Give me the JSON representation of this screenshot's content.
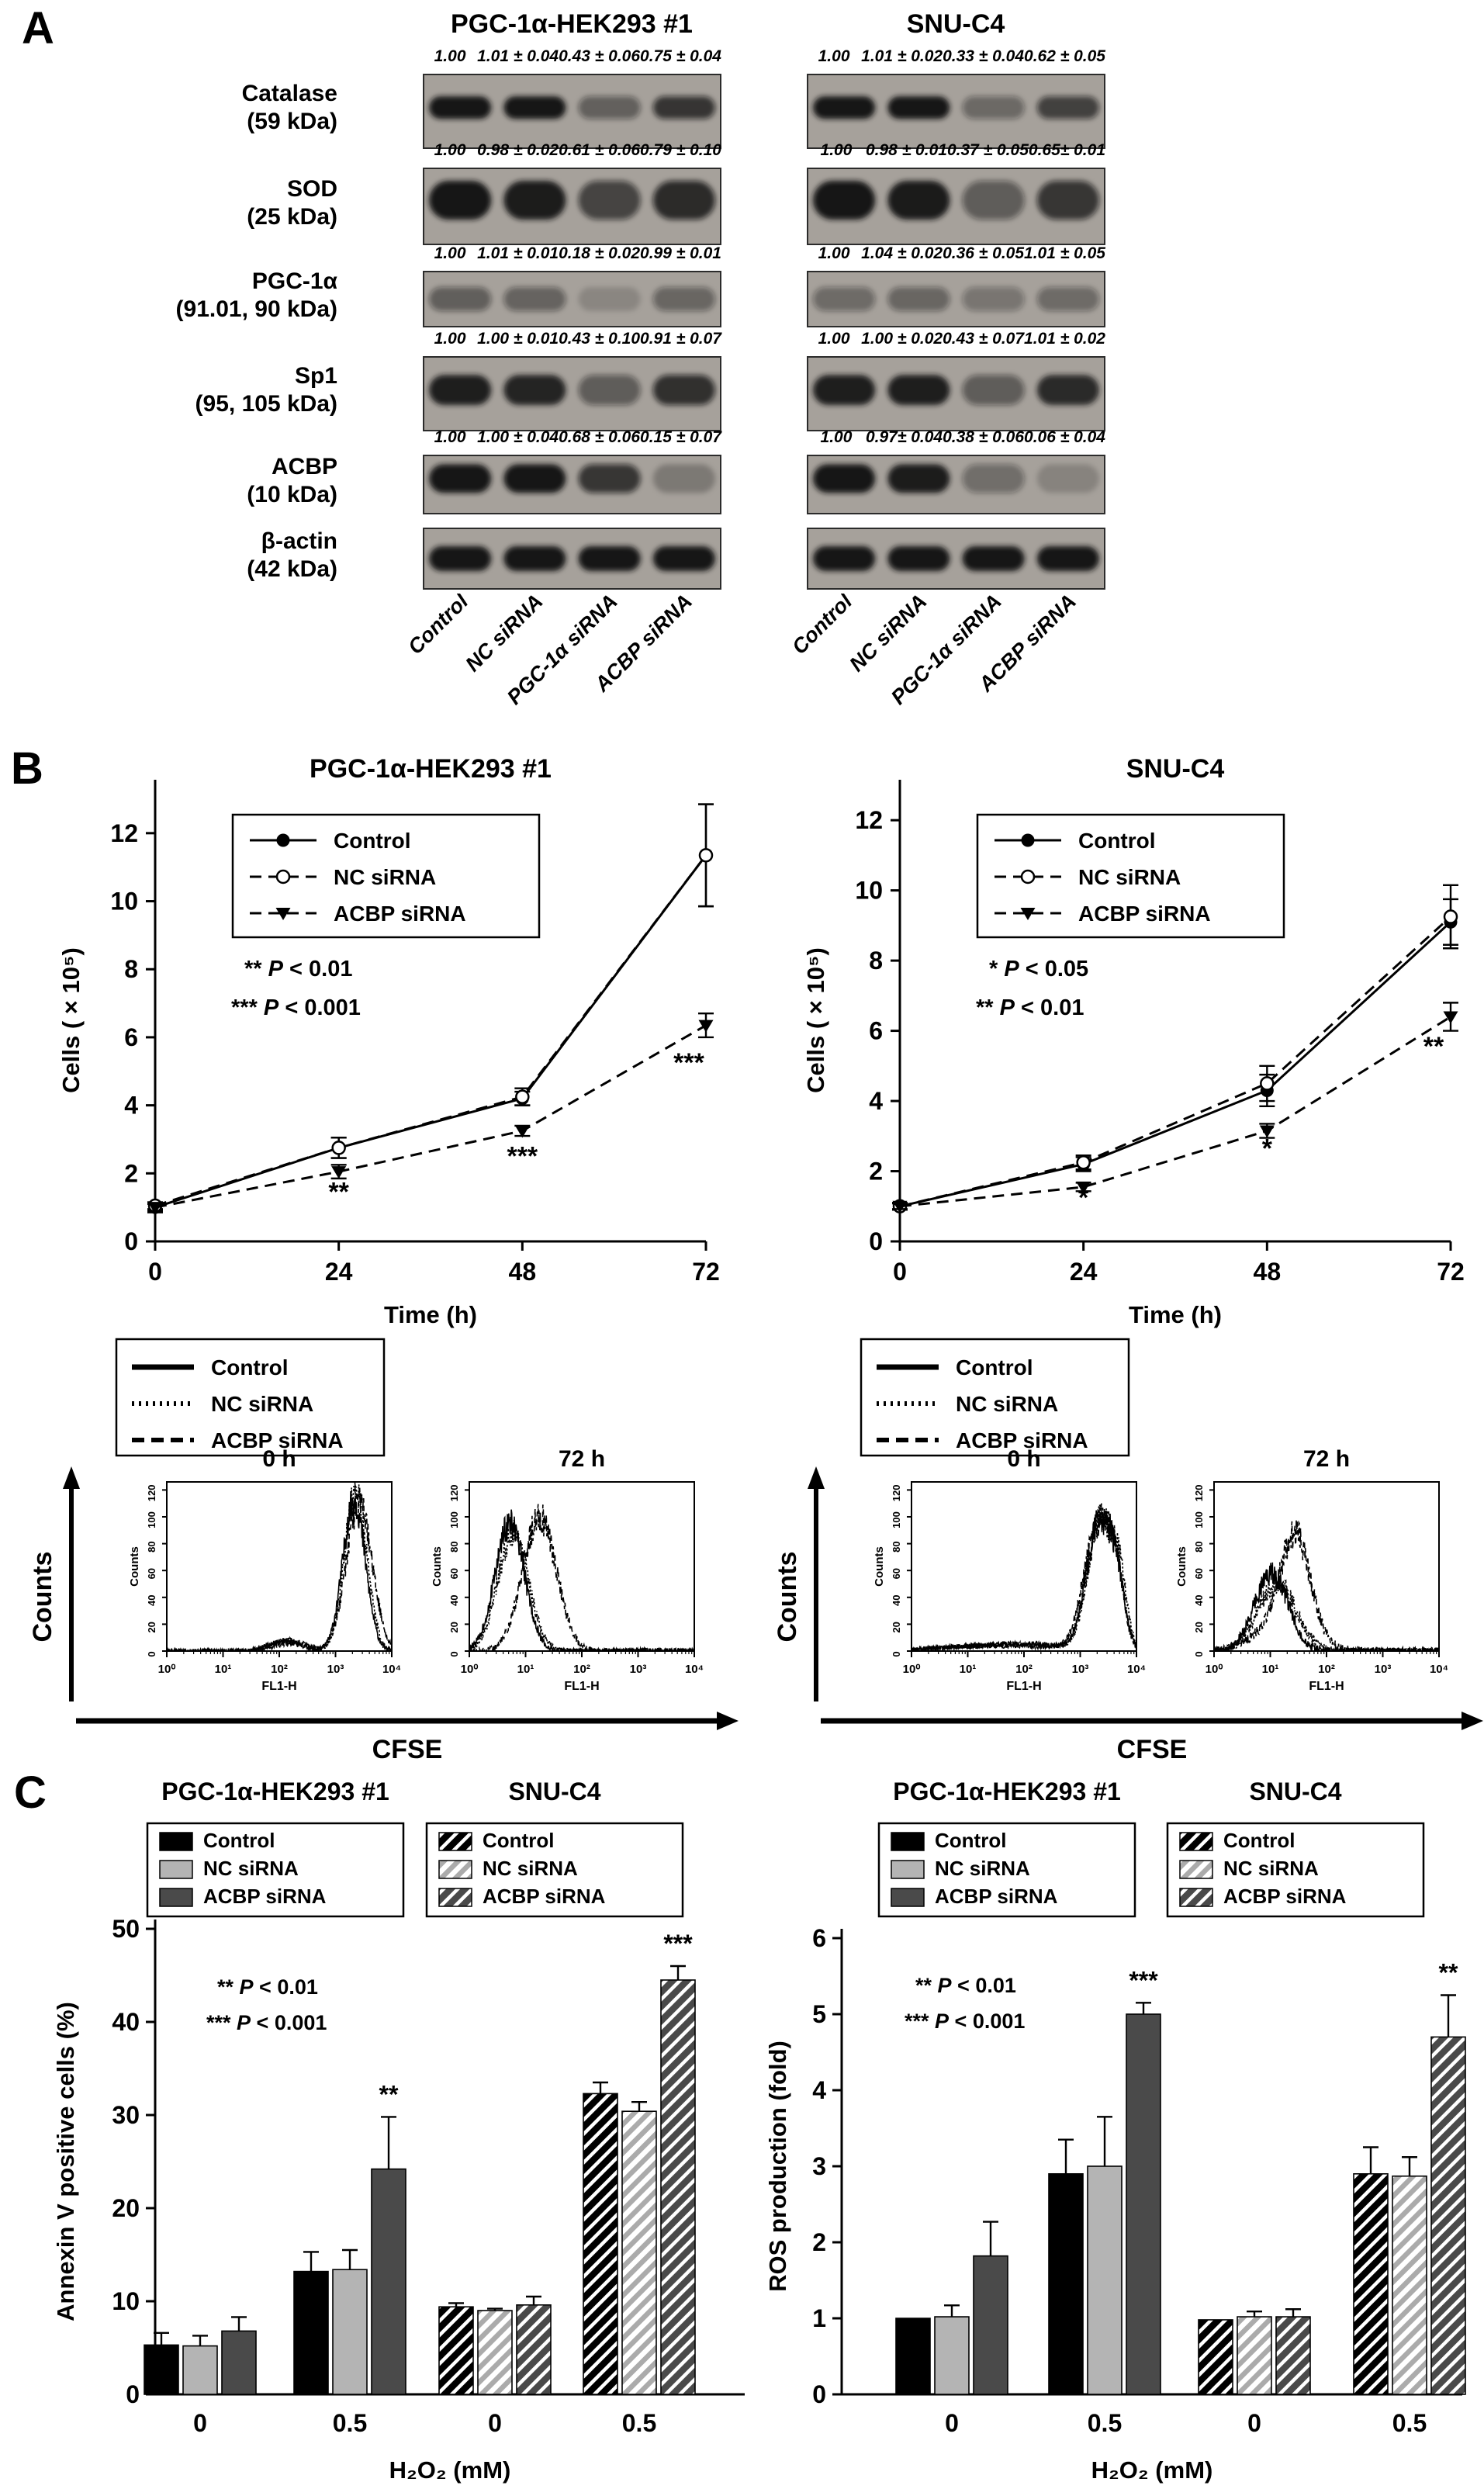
{
  "colors": {
    "blot_bg": "#a6a19b",
    "band": "#141414",
    "bar_control": "#000000",
    "bar_nc": "#b4b4b4",
    "bar_acbp": "#4a4a4a",
    "accent": "#000000"
  },
  "panelA": {
    "label": "A",
    "columns": [
      "PGC-1α-HEK293 #1",
      "SNU-C4"
    ],
    "lane_labels": [
      "Control",
      "NC siRNA",
      "PGC-1α siRNA",
      "ACBP siRNA"
    ],
    "rows": [
      {
        "name": "Catalase",
        "kda": "(59 kDa)",
        "left": {
          "values": [
            "1.00",
            "1.01 ± 0.04",
            "0.43 ± 0.06",
            "0.75 ± 0.04"
          ],
          "intensities": [
            1,
            1,
            0.4,
            0.72
          ]
        },
        "right": {
          "values": [
            "1.00",
            "1.01 ± 0.02",
            "0.33 ± 0.04",
            "0.62 ± 0.05"
          ],
          "intensities": [
            1,
            1,
            0.33,
            0.62
          ]
        },
        "band": {
          "hf": 0.3,
          "yf": 0.45,
          "alpha": 1.0
        }
      },
      {
        "name": "SOD",
        "kda": "(25 kDa)",
        "left": {
          "values": [
            "1.00",
            "0.98 ± 0.02",
            "0.61 ± 0.06",
            "0.79 ± 0.10"
          ],
          "intensities": [
            1,
            0.95,
            0.6,
            0.78
          ]
        },
        "right": {
          "values": [
            "1.00",
            "0.98 ± 0.01",
            "0.37 ± 0.05",
            "0.65± 0.01"
          ],
          "intensities": [
            1,
            0.97,
            0.42,
            0.7
          ]
        },
        "band": {
          "hf": 0.5,
          "yf": 0.42,
          "alpha": 1.0
        }
      },
      {
        "name": "PGC-1α",
        "kda": "(91.01, 90 kDa)",
        "left": {
          "values": [
            "1.00",
            "1.01 ± 0.01",
            "0.18 ± 0.02",
            "0.99 ± 0.01"
          ],
          "intensities": [
            0.85,
            0.8,
            0.22,
            0.75
          ]
        },
        "right": {
          "values": [
            "1.00",
            "1.04 ± 0.02",
            "0.36 ± 0.05",
            "1.01 ± 0.05"
          ],
          "intensities": [
            0.7,
            0.75,
            0.55,
            0.68
          ]
        },
        "band": {
          "hf": 0.42,
          "yf": 0.5,
          "alpha": 0.55
        }
      },
      {
        "name": "Sp1",
        "kda": "(95, 105 kDa)",
        "left": {
          "values": [
            "1.00",
            "1.00 ± 0.01",
            "0.43 ± 0.10",
            "0.91 ± 0.07"
          ],
          "intensities": [
            1,
            0.95,
            0.45,
            0.8
          ]
        },
        "right": {
          "values": [
            "1.00",
            "1.00 ± 0.02",
            "0.43 ± 0.07",
            "1.01 ± 0.02"
          ],
          "intensities": [
            1,
            1,
            0.45,
            0.9
          ]
        },
        "band": {
          "hf": 0.4,
          "yf": 0.45,
          "alpha": 0.95
        }
      },
      {
        "name": "ACBP",
        "kda": "(10 kDa)",
        "left": {
          "values": [
            "1.00",
            "1.00 ± 0.04",
            "0.68 ± 0.06",
            "0.15 ± 0.07"
          ],
          "intensities": [
            1,
            1,
            0.7,
            0.15
          ]
        },
        "right": {
          "values": [
            "1.00",
            "0.97± 0.04",
            "0.38 ± 0.06",
            "0.06 ± 0.04"
          ],
          "intensities": [
            1,
            0.95,
            0.3,
            0.08
          ]
        },
        "band": {
          "hf": 0.48,
          "yf": 0.4,
          "alpha": 1.0
        }
      },
      {
        "name": "β-actin",
        "kda": "(42 kDa)",
        "left": {
          "values": [],
          "intensities": [
            1,
            1,
            1,
            1
          ]
        },
        "right": {
          "values": [],
          "intensities": [
            1,
            1,
            1,
            1
          ]
        },
        "band": {
          "hf": 0.4,
          "yf": 0.5,
          "alpha": 1.0
        }
      }
    ]
  },
  "panelB": {
    "label": "B",
    "line_charts": [
      {
        "type": "line",
        "title": "PGC-1α-HEK293 #1",
        "ylabel": "Cells ( × 10⁵)",
        "xlabel": "Time (h)",
        "x": [
          0,
          24,
          48,
          72
        ],
        "ylim": [
          0,
          13
        ],
        "yticks": [
          0,
          2,
          4,
          6,
          8,
          10,
          12
        ],
        "series": [
          {
            "name": "Control",
            "marker": "filled-circle",
            "line": "solid",
            "values": [
              1.0,
              2.75,
              4.2,
              11.35
            ],
            "errors": [
              0.15,
              0.3,
              0.2,
              1.5
            ]
          },
          {
            "name": "NC siRNA",
            "marker": "open-circle",
            "line": "dashed",
            "values": [
              1.05,
              2.75,
              4.25,
              11.35
            ],
            "errors": [
              0.1,
              0.3,
              0.25,
              1.5
            ]
          },
          {
            "name": "ACBP siRNA",
            "marker": "filled-triangle-down",
            "line": "dashed",
            "values": [
              1.0,
              2.05,
              3.25,
              6.35
            ],
            "errors": [
              0.1,
              0.2,
              0.15,
              0.35
            ]
          }
        ],
        "significance": [
          {
            "x": 24,
            "y": 1.2,
            "text": "**"
          },
          {
            "x": 48,
            "y": 2.25,
            "text": "***"
          },
          {
            "x": 72,
            "y": 5.0,
            "text": "***"
          }
        ],
        "pnotes": [
          {
            "stars": "**",
            "cond": "< 0.01"
          },
          {
            "stars": "***",
            "cond": "< 0.001"
          }
        ]
      },
      {
        "type": "line",
        "title": "SNU-C4",
        "ylabel": "Cells ( × 10⁵)",
        "xlabel": "Time (h)",
        "x": [
          0,
          24,
          48,
          72
        ],
        "ylim": [
          0,
          12.6
        ],
        "yticks": [
          0,
          2,
          4,
          6,
          8,
          10,
          12
        ],
        "series": [
          {
            "name": "Control",
            "marker": "filled-circle",
            "line": "solid",
            "values": [
              1.0,
              2.2,
              4.3,
              9.1
            ],
            "errors": [
              0.1,
              0.2,
              0.45,
              0.65
            ]
          },
          {
            "name": "NC siRNA",
            "marker": "open-circle",
            "line": "dashed",
            "values": [
              1.0,
              2.25,
              4.5,
              9.25
            ],
            "errors": [
              0.1,
              0.2,
              0.5,
              0.9
            ]
          },
          {
            "name": "ACBP siRNA",
            "marker": "filled-triangle-down",
            "line": "dashed",
            "values": [
              1.0,
              1.55,
              3.15,
              6.4
            ],
            "errors": [
              0.08,
              0.12,
              0.2,
              0.4
            ]
          }
        ],
        "significance": [
          {
            "x": 24,
            "y": 1.0,
            "text": "*"
          },
          {
            "x": 48,
            "y": 2.4,
            "text": "*"
          },
          {
            "x": 72,
            "y": 5.3,
            "text": "**"
          }
        ],
        "pnotes": [
          {
            "stars": "*",
            "cond": "< 0.05"
          },
          {
            "stars": "**",
            "cond": "< 0.01"
          }
        ]
      }
    ],
    "flow": {
      "type": "histogram",
      "legend": [
        {
          "label": "Control",
          "style": "solid"
        },
        {
          "label": "NC siRNA",
          "style": "dotted"
        },
        {
          "label": "ACBP siRNA",
          "style": "dashed"
        }
      ],
      "outer_ylabel": "Counts",
      "outer_xlabel": "CFSE",
      "inner_ylabel": "Counts",
      "inner_xlabel": "FL1-H",
      "yticks": [
        0,
        20,
        40,
        60,
        80,
        100,
        120
      ],
      "xticks": [
        "10⁰",
        "10¹",
        "10²",
        "10³",
        "10⁴"
      ],
      "groups": [
        {
          "cell_line": "PGC-1α-HEK293 #1",
          "panels": [
            {
              "title": "0 h",
              "jitter": 2.5,
              "series": [
                {
                  "style": "solid",
                  "seed": 11,
                  "peaks": [
                    {
                      "c": 3.33,
                      "w": 0.2,
                      "h": 112
                    },
                    {
                      "c": 2.1,
                      "w": 0.3,
                      "h": 7
                    }
                  ]
                },
                {
                  "style": "dotted",
                  "seed": 22,
                  "peaks": [
                    {
                      "c": 3.36,
                      "w": 0.2,
                      "h": 118
                    },
                    {
                      "c": 2.15,
                      "w": 0.3,
                      "h": 8
                    }
                  ]
                },
                {
                  "style": "dashed",
                  "seed": 33,
                  "peaks": [
                    {
                      "c": 3.42,
                      "w": 0.23,
                      "h": 110
                    },
                    {
                      "c": 2.2,
                      "w": 0.3,
                      "h": 6
                    }
                  ]
                }
              ]
            },
            {
              "title": "72 h",
              "jitter": 3.5,
              "series": [
                {
                  "style": "solid",
                  "seed": 44,
                  "peaks": [
                    {
                      "c": 0.72,
                      "w": 0.26,
                      "h": 95
                    }
                  ]
                },
                {
                  "style": "dotted",
                  "seed": 55,
                  "peaks": [
                    {
                      "c": 0.78,
                      "w": 0.27,
                      "h": 88
                    }
                  ]
                },
                {
                  "style": "dashed",
                  "seed": 66,
                  "peaks": [
                    {
                      "c": 1.25,
                      "w": 0.3,
                      "h": 100
                    }
                  ]
                }
              ]
            }
          ]
        },
        {
          "cell_line": "SNU-C4",
          "panels": [
            {
              "title": "0 h",
              "jitter": 2.5,
              "series": [
                {
                  "style": "solid",
                  "seed": 77,
                  "peaks": [
                    {
                      "c": 3.33,
                      "w": 0.22,
                      "h": 93
                    },
                    {
                      "c": 3.66,
                      "w": 0.14,
                      "h": 40
                    },
                    {
                      "c": 1.8,
                      "w": 1.1,
                      "h": 5
                    }
                  ]
                },
                {
                  "style": "dotted",
                  "seed": 88,
                  "peaks": [
                    {
                      "c": 3.36,
                      "w": 0.22,
                      "h": 96
                    },
                    {
                      "c": 3.7,
                      "w": 0.13,
                      "h": 44
                    },
                    {
                      "c": 1.9,
                      "w": 1.0,
                      "h": 5
                    }
                  ]
                },
                {
                  "style": "dashed",
                  "seed": 99,
                  "peaks": [
                    {
                      "c": 3.3,
                      "w": 0.24,
                      "h": 88
                    },
                    {
                      "c": 3.62,
                      "w": 0.15,
                      "h": 46
                    },
                    {
                      "c": 1.7,
                      "w": 1.1,
                      "h": 4
                    }
                  ]
                }
              ]
            },
            {
              "title": "72 h",
              "jitter": 4.5,
              "series": [
                {
                  "style": "solid",
                  "seed": 111,
                  "peaks": [
                    {
                      "c": 1.02,
                      "w": 0.3,
                      "h": 58
                    }
                  ]
                },
                {
                  "style": "dotted",
                  "seed": 122,
                  "peaks": [
                    {
                      "c": 1.12,
                      "w": 0.34,
                      "h": 50
                    }
                  ]
                },
                {
                  "style": "dashed",
                  "seed": 133,
                  "peaks": [
                    {
                      "c": 1.45,
                      "w": 0.26,
                      "h": 72
                    },
                    {
                      "c": 1.2,
                      "w": 0.5,
                      "h": 18
                    }
                  ]
                }
              ]
            }
          ]
        }
      ]
    }
  },
  "panelC": {
    "label": "C",
    "charts": [
      {
        "type": "bar",
        "subtitles": [
          "PGC-1α-HEK293 #1",
          "SNU-C4"
        ],
        "legend_labels": [
          "Control",
          "NC siRNA",
          "ACBP siRNA"
        ],
        "ylabel": "Annexin V positive cells (%)",
        "xlabel": "H₂O₂ (mM)",
        "ylim": [
          0,
          50
        ],
        "yticks": [
          0,
          10,
          20,
          30,
          40,
          50
        ],
        "groups": [
          {
            "label": "0",
            "hatched": false,
            "values": [
              5.3,
              5.2,
              6.8
            ],
            "errors": [
              1.3,
              1.1,
              1.5
            ],
            "sig": [
              "",
              "",
              ""
            ]
          },
          {
            "label": "0.5",
            "hatched": false,
            "values": [
              13.2,
              13.4,
              24.2
            ],
            "errors": [
              2.1,
              2.1,
              5.6
            ],
            "sig": [
              "",
              "",
              "**"
            ]
          },
          {
            "label": "0",
            "hatched": true,
            "values": [
              9.4,
              9.0,
              9.6
            ],
            "errors": [
              0.4,
              0.2,
              0.9
            ],
            "sig": [
              "",
              "",
              ""
            ]
          },
          {
            "label": "0.5",
            "hatched": true,
            "values": [
              32.3,
              30.4,
              44.5
            ],
            "errors": [
              1.2,
              1.0,
              1.5
            ],
            "sig": [
              "",
              "",
              "***"
            ]
          }
        ],
        "pnotes": [
          {
            "stars": "**",
            "cond": "< 0.01"
          },
          {
            "stars": "***",
            "cond": "< 0.001"
          }
        ]
      },
      {
        "type": "bar",
        "subtitles": [
          "PGC-1α-HEK293 #1",
          "SNU-C4"
        ],
        "legend_labels": [
          "Control",
          "NC siRNA",
          "ACBP siRNA"
        ],
        "ylabel": "ROS production (fold)",
        "xlabel": "H₂O₂ (mM)",
        "ylim": [
          0,
          6
        ],
        "yticks": [
          0,
          1,
          2,
          3,
          4,
          5,
          6
        ],
        "groups": [
          {
            "label": "0",
            "hatched": false,
            "values": [
              1.0,
              1.02,
              1.82
            ],
            "errors": [
              0,
              0.15,
              0.45
            ],
            "sig": [
              "",
              "",
              ""
            ]
          },
          {
            "label": "0.5",
            "hatched": false,
            "values": [
              2.9,
              3.0,
              5.0
            ],
            "errors": [
              0.45,
              0.65,
              0.15
            ],
            "sig": [
              "",
              "",
              "***"
            ]
          },
          {
            "label": "0",
            "hatched": true,
            "values": [
              0.98,
              1.02,
              1.02
            ],
            "errors": [
              0,
              0.07,
              0.1
            ],
            "sig": [
              "",
              "",
              ""
            ]
          },
          {
            "label": "0.5",
            "hatched": true,
            "values": [
              2.9,
              2.87,
              4.7
            ],
            "errors": [
              0.35,
              0.25,
              0.55
            ],
            "sig": [
              "",
              "",
              "**"
            ]
          }
        ],
        "pnotes": [
          {
            "stars": "**",
            "cond": "< 0.01"
          },
          {
            "stars": "***",
            "cond": "< 0.001"
          }
        ]
      }
    ]
  }
}
